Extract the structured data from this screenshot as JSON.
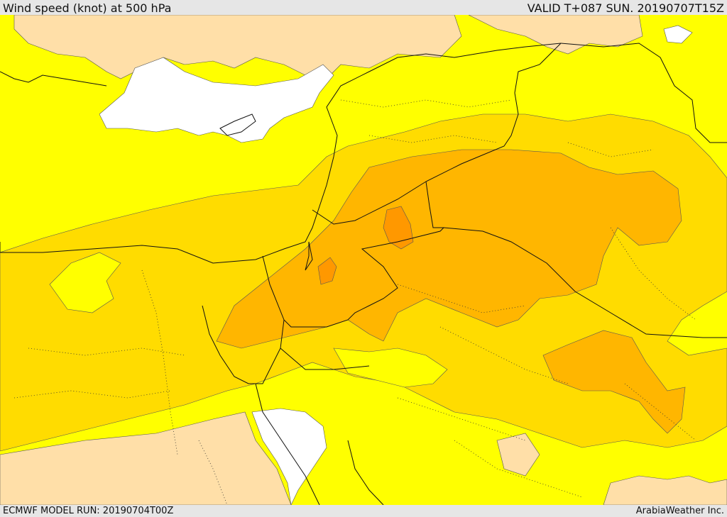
{
  "header": {
    "title": "Wind speed (knot) at 500 hPa",
    "valid": "VALID T+087 SUN. 20190707T15Z"
  },
  "footer": {
    "model_run": "ECMWF MODEL RUN: 20190704T00Z",
    "credit": "ArabiaWeather Inc."
  },
  "colors": {
    "band_lowest": "#ffffff",
    "band_low": "#ffdfa8",
    "band_mid": "#ffff00",
    "band_high": "#ffdc00",
    "band_higher": "#ffb600",
    "band_highest": "#ff9800",
    "border_line": "#111111"
  }
}
